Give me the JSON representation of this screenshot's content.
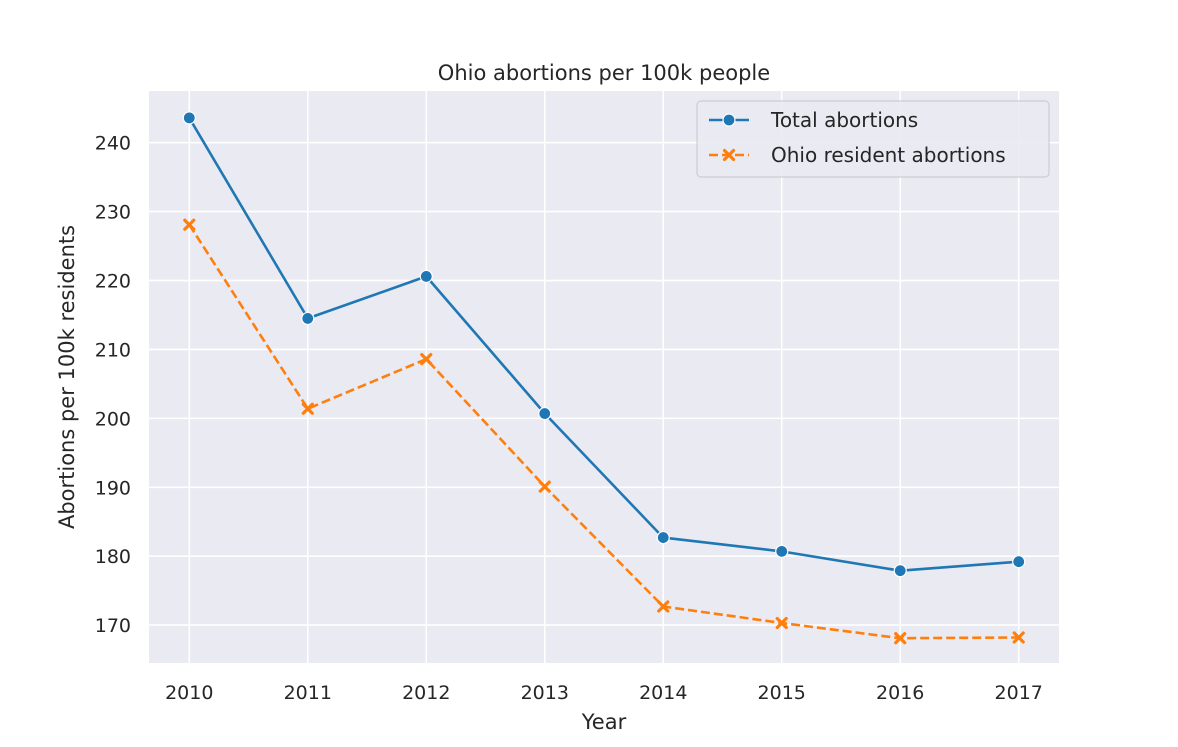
{
  "chart_data": {
    "type": "line",
    "title": "Ohio abortions per 100k people",
    "xlabel": "Year",
    "ylabel": "Abortions per 100k residents",
    "x": [
      2010,
      2011,
      2012,
      2013,
      2014,
      2015,
      2016,
      2017
    ],
    "xlim": [
      2009.66,
      2017.34
    ],
    "ylim": [
      164.5,
      247.5
    ],
    "yticks": [
      170,
      180,
      190,
      200,
      210,
      220,
      230,
      240
    ],
    "grid": true,
    "legend_position": "top-right",
    "series": [
      {
        "name": "Total abortions",
        "color": "#1f77b4",
        "marker": "circle",
        "line_style": "solid",
        "values": [
          243.6,
          214.5,
          220.6,
          200.7,
          182.7,
          180.7,
          177.9,
          179.2
        ]
      },
      {
        "name": "Ohio resident abortions",
        "color": "#ff7f0e",
        "marker": "x",
        "line_style": "dashed",
        "values": [
          228.1,
          201.4,
          208.6,
          190.1,
          172.7,
          170.3,
          168.1,
          168.2
        ]
      }
    ]
  }
}
